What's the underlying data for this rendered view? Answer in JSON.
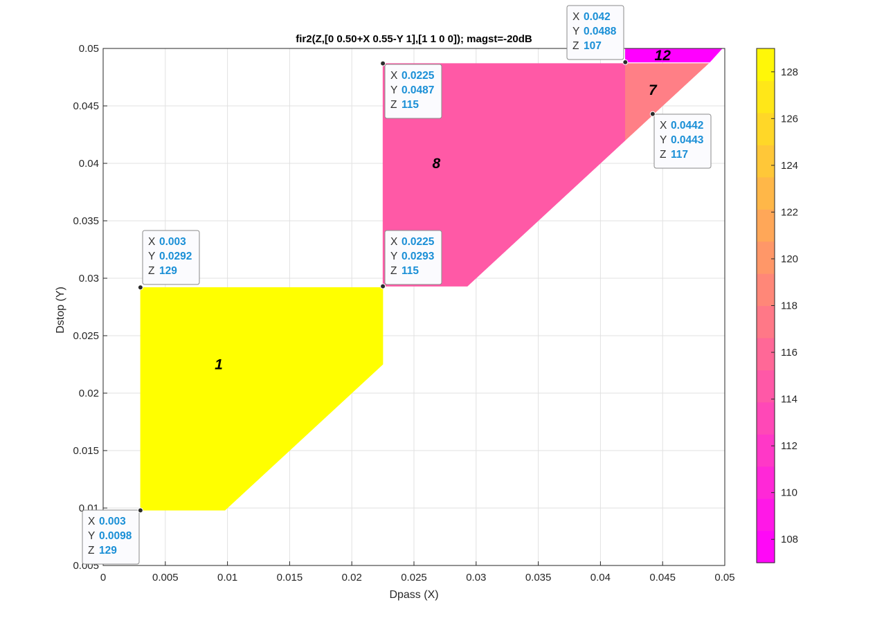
{
  "chart_data": {
    "type": "contourf",
    "title": "fir2(Z,[0 0.50+X 0.55-Y 1],[1 1 0 0]); magst=-20dB",
    "xlabel": "Dpass (X)",
    "ylabel": "Dstop (Y)",
    "xlim": [
      0,
      0.05
    ],
    "ylim": [
      0.005,
      0.05
    ],
    "xticks": [
      "0",
      "0.005",
      "0.01",
      "0.015",
      "0.02",
      "0.025",
      "0.03",
      "0.035",
      "0.04",
      "0.045",
      "0.05"
    ],
    "yticks": [
      "0.005",
      "0.01",
      "0.015",
      "0.02",
      "0.025",
      "0.03",
      "0.035",
      "0.04",
      "0.045",
      "0.05"
    ],
    "grid": true,
    "colorbar": {
      "clim": [
        107,
        129
      ],
      "ticks": [
        "108",
        "110",
        "112",
        "114",
        "116",
        "118",
        "120",
        "122",
        "124",
        "126",
        "128"
      ],
      "colormap": "spring"
    },
    "regions": [
      {
        "label": "1",
        "z": 129,
        "color": "#ffff00",
        "polygon": [
          [
            0.003,
            0.0098
          ],
          [
            0.0098,
            0.0098
          ],
          [
            0.0225,
            0.0225
          ],
          [
            0.0225,
            0.0292
          ],
          [
            0.003,
            0.0292
          ]
        ],
        "label_at": [
          0.0093,
          0.0225
        ]
      },
      {
        "label": "8",
        "z": 115,
        "color": "#ff59a6",
        "polygon": [
          [
            0.0225,
            0.0293
          ],
          [
            0.0293,
            0.0293
          ],
          [
            0.042,
            0.042
          ],
          [
            0.042,
            0.0487
          ],
          [
            0.0225,
            0.0487
          ]
        ],
        "label_at": [
          0.0268,
          0.04
        ]
      },
      {
        "label": "7",
        "z": 117,
        "color": "#ff7f86",
        "polygon": [
          [
            0.042,
            0.042
          ],
          [
            0.0487,
            0.0487
          ],
          [
            0.042,
            0.0487
          ]
        ],
        "label_at": [
          0.0442,
          0.0464
        ]
      },
      {
        "label": "12",
        "z": 107,
        "color": "#ff00ff",
        "polygon": [
          [
            0.042,
            0.0488
          ],
          [
            0.0488,
            0.0488
          ],
          [
            0.0498,
            0.05
          ],
          [
            0.042,
            0.05
          ]
        ],
        "label_at": [
          0.045,
          0.0494
        ]
      }
    ],
    "datatips": [
      {
        "x": "0.003",
        "y": "0.0098",
        "z": "129"
      },
      {
        "x": "0.003",
        "y": "0.0292",
        "z": "129"
      },
      {
        "x": "0.0225",
        "y": "0.0293",
        "z": "115"
      },
      {
        "x": "0.0225",
        "y": "0.0487",
        "z": "115"
      },
      {
        "x": "0.042",
        "y": "0.0488",
        "z": "107"
      },
      {
        "x": "0.0442",
        "y": "0.0443",
        "z": "117"
      }
    ]
  }
}
